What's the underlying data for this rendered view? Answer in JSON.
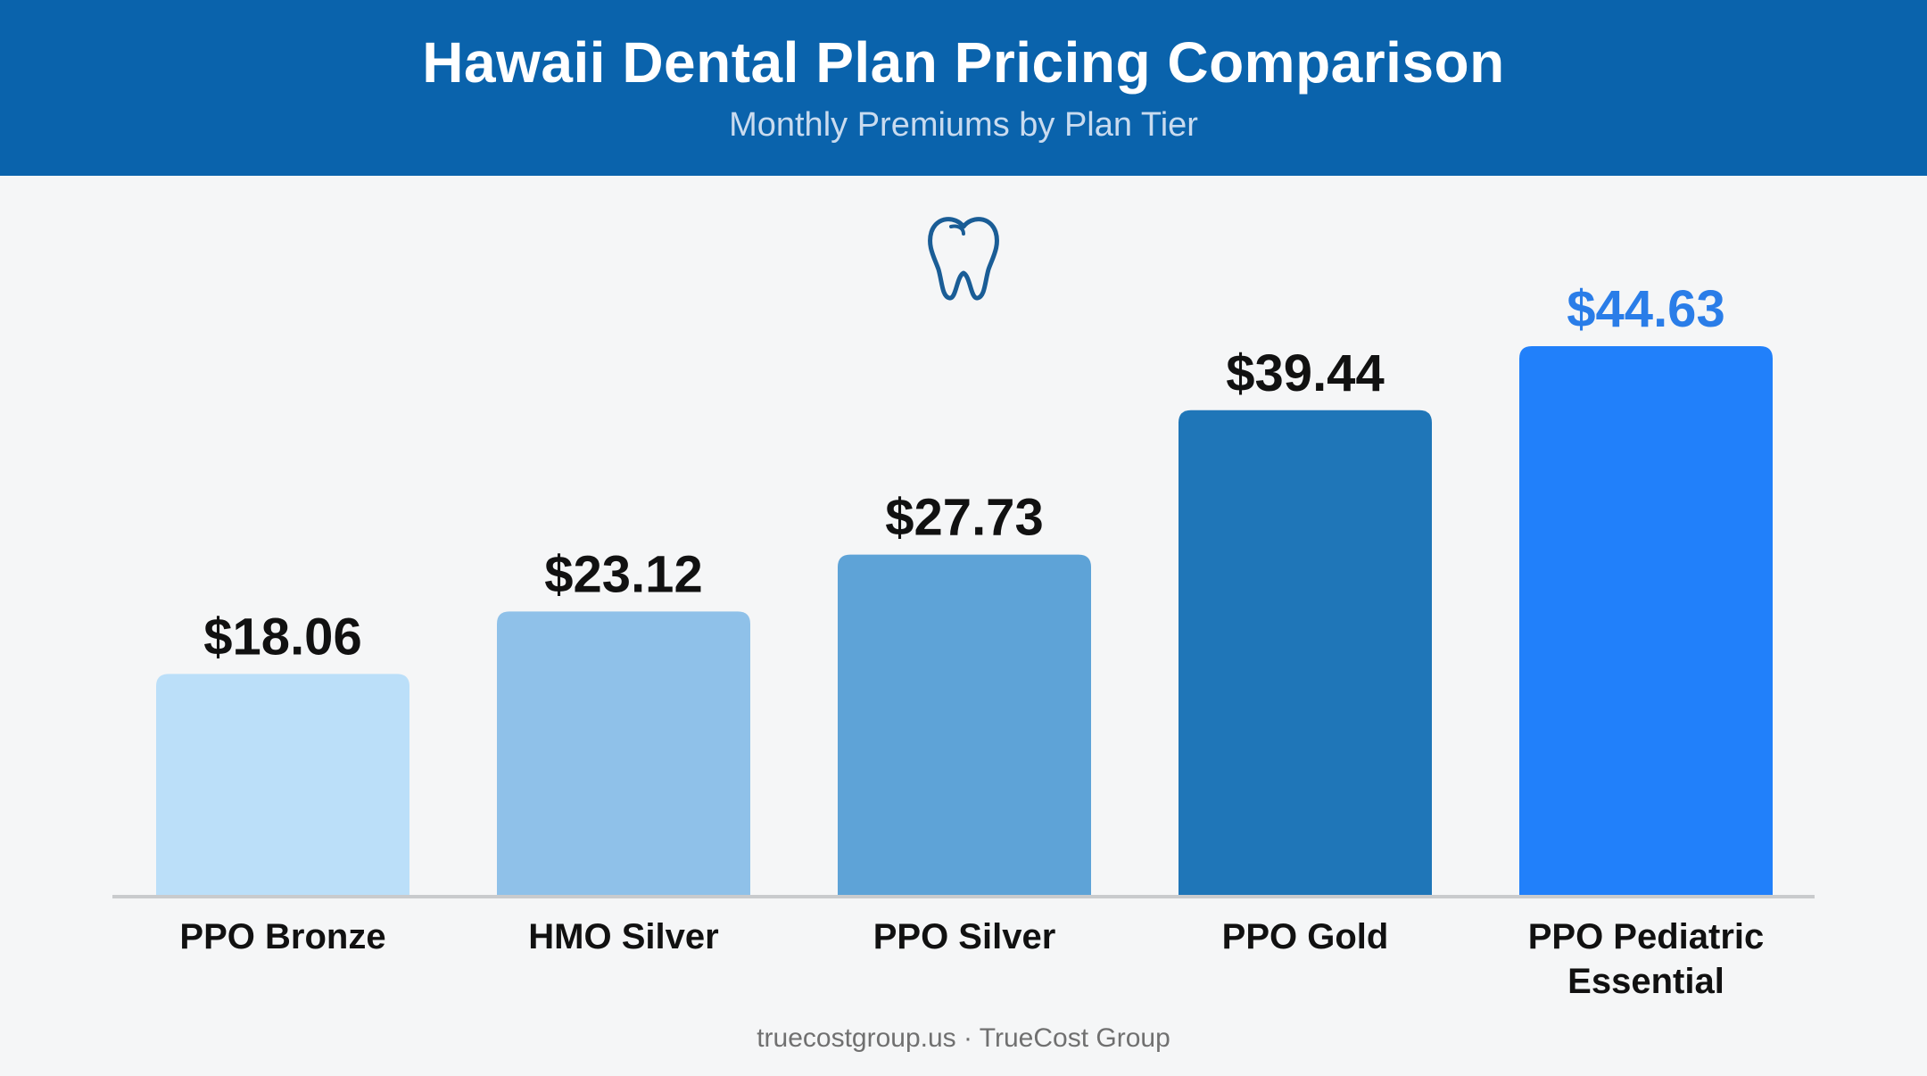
{
  "header": {
    "title": "Hawaii Dental Plan Pricing Comparison",
    "subtitle": "Monthly Premiums by Plan Tier"
  },
  "icon": "tooth-icon",
  "chart_data": {
    "type": "bar",
    "title": "Hawaii Dental Plan Pricing Comparison",
    "subtitle": "Monthly Premiums by Plan Tier",
    "categories": [
      [
        "PPO Bronze"
      ],
      [
        "HMO Silver"
      ],
      [
        "PPO Silver"
      ],
      [
        "PPO Gold"
      ],
      [
        "PPO Pediatric",
        "Essential"
      ]
    ],
    "values": [
      18.06,
      23.12,
      27.73,
      39.44,
      44.63
    ],
    "value_labels": [
      "$18.06",
      "$23.12",
      "$27.73",
      "$39.44",
      "$44.63"
    ],
    "bar_colors": [
      "#bbdff9",
      "#8fc1e9",
      "#5ea3d7",
      "#1f76b8",
      "#2180fa"
    ],
    "value_label_colors": [
      "#111111",
      "#111111",
      "#111111",
      "#111111",
      "#2a7de8"
    ],
    "xlabel": "",
    "ylabel": "",
    "ylim": [
      0,
      44.63
    ],
    "grid": false,
    "legend": "none"
  },
  "footer": {
    "source": "truecostgroup.us · TrueCost Group"
  }
}
